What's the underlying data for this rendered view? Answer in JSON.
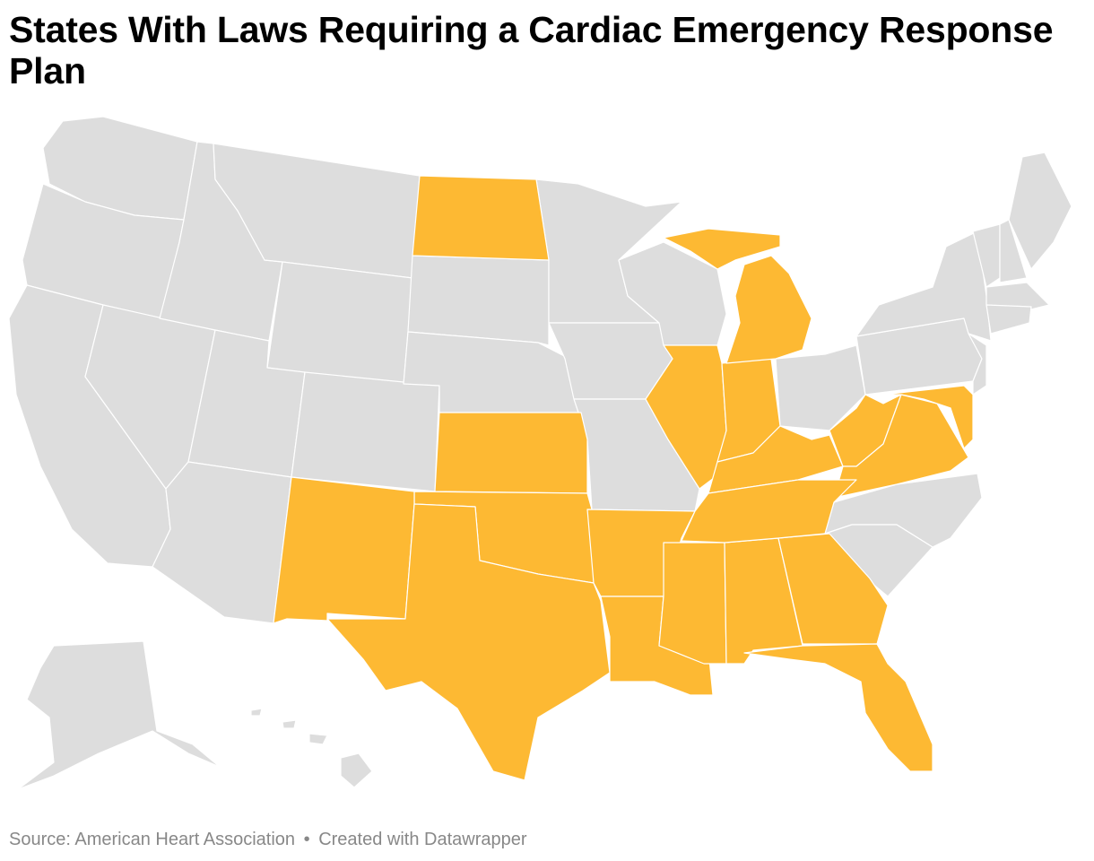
{
  "title": "States With Laws Requiring a Cardiac Emergency Response Plan",
  "footer": {
    "source": "Source: American Heart Association",
    "separator": "•",
    "credit": "Created with Datawrapper"
  },
  "colors": {
    "highlight": "#fdb933",
    "default": "#dddddd",
    "border": "#ffffff"
  },
  "highlighted_states": [
    "North Dakota",
    "Michigan",
    "Illinois",
    "Indiana",
    "Kentucky",
    "West Virginia",
    "Virginia",
    "Maryland",
    "Delaware",
    "Tennessee",
    "Kansas",
    "Oklahoma",
    "New Mexico",
    "Texas",
    "Arkansas",
    "Louisiana",
    "Mississippi",
    "Alabama",
    "Georgia",
    "Florida"
  ]
}
